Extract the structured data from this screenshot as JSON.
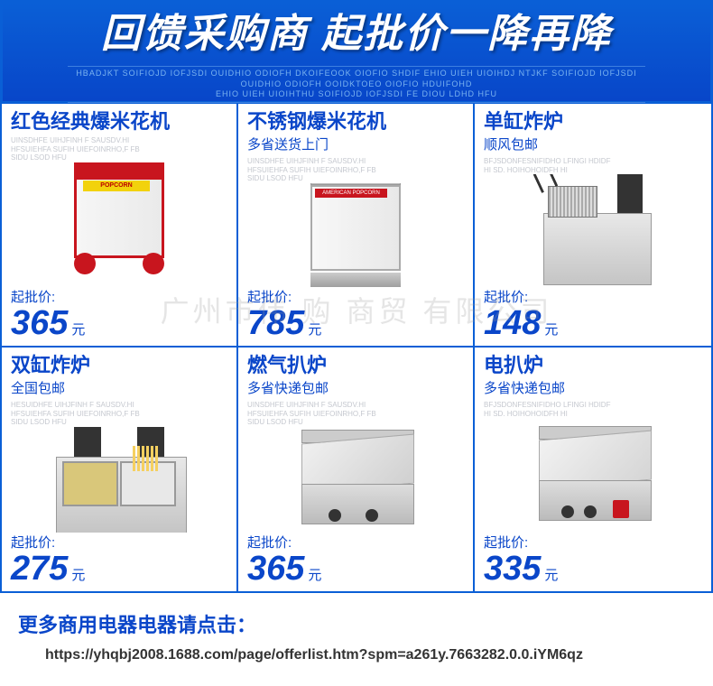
{
  "banner": {
    "title": "回馈采购商  起批价一降再降",
    "sub_line1": "HBADJKT SOIFIOJD IOFJSDI OUIDHIO ODIOFH DKOIFEOOK OIOFIO SHDIF EHIO UIEH UIOIHDJ NTJKF SOIFIOJD IOFJSDI OUIDHIO ODIOFH OOIDKTOEO OIOFIO HDUIFOHD",
    "sub_line2": "EHIO UIEH UIOIHTHU SOIFIOJD IOFJSDI FE DIOU LDHD HFU"
  },
  "products": [
    {
      "title": "红色经典爆米花机",
      "subtitle": "",
      "microtext": "UINSDHFE UIHJFINH F SAUSDV.HI HFSUIEHFA SUFIH UIEFOINRHO,F FB SIDU LSOD HFU",
      "price_label": "起批价:",
      "price": "365",
      "unit": "元",
      "prod_class": "p1"
    },
    {
      "title": "不锈钢爆米花机",
      "subtitle": "多省送货上门",
      "microtext": "UINSDHFE UIHJFINH F SAUSDV.HI HFSUIEHFA SUFIH UIEFOINRHO,F FB SIDU LSOD HFU",
      "price_label": "起批价:",
      "price": "785",
      "unit": "元",
      "prod_class": "p2"
    },
    {
      "title": "单缸炸炉",
      "subtitle": "顺风包邮",
      "microtext": "BFJSDONFESNIFIDHO LFINGI HDIDF HI SD. HOIHOHOIDFH HI",
      "price_label": "起批价:",
      "price": "148",
      "unit": "元",
      "prod_class": "p3"
    },
    {
      "title": "双缸炸炉",
      "subtitle": "全国包邮",
      "microtext": "HESUIDHFE UIHJFINH F SAUSDV.HI HFSUIEHFA SUFIH UIEFOINRHO,F FB SIDU LSOD HFU",
      "price_label": "起批价:",
      "price": "275",
      "unit": "元",
      "prod_class": "p4"
    },
    {
      "title": "燃气扒炉",
      "subtitle": "多省快递包邮",
      "microtext": "UINSDHFE UIHJFINH F SAUSDV.HI HFSUIEHFA SUFIH UIEFOINRHO,F FB SIDU LSOD HFU",
      "price_label": "起批价:",
      "price": "365",
      "unit": "元",
      "prod_class": "p5"
    },
    {
      "title": "电扒炉",
      "subtitle": "多省快递包邮",
      "microtext": "BFJSDONFESNIFIDHO LFINGI HDIDF HI SD. HOIHOHOIDFH HI",
      "price_label": "起批价:",
      "price": "335",
      "unit": "元",
      "prod_class": "p6"
    }
  ],
  "footer": {
    "title": "更多商用电器电器请点击：",
    "link_text": "https://yhqbj2008.1688.com/page/offerlist.htm?spm=a261y.7663282.0.0.iYM6qz"
  },
  "watermark": "广州市伟 购 商贸 有限公司",
  "colors": {
    "primary": "#0a46c9",
    "border": "#0a5fd6",
    "red": "#c8151e"
  }
}
